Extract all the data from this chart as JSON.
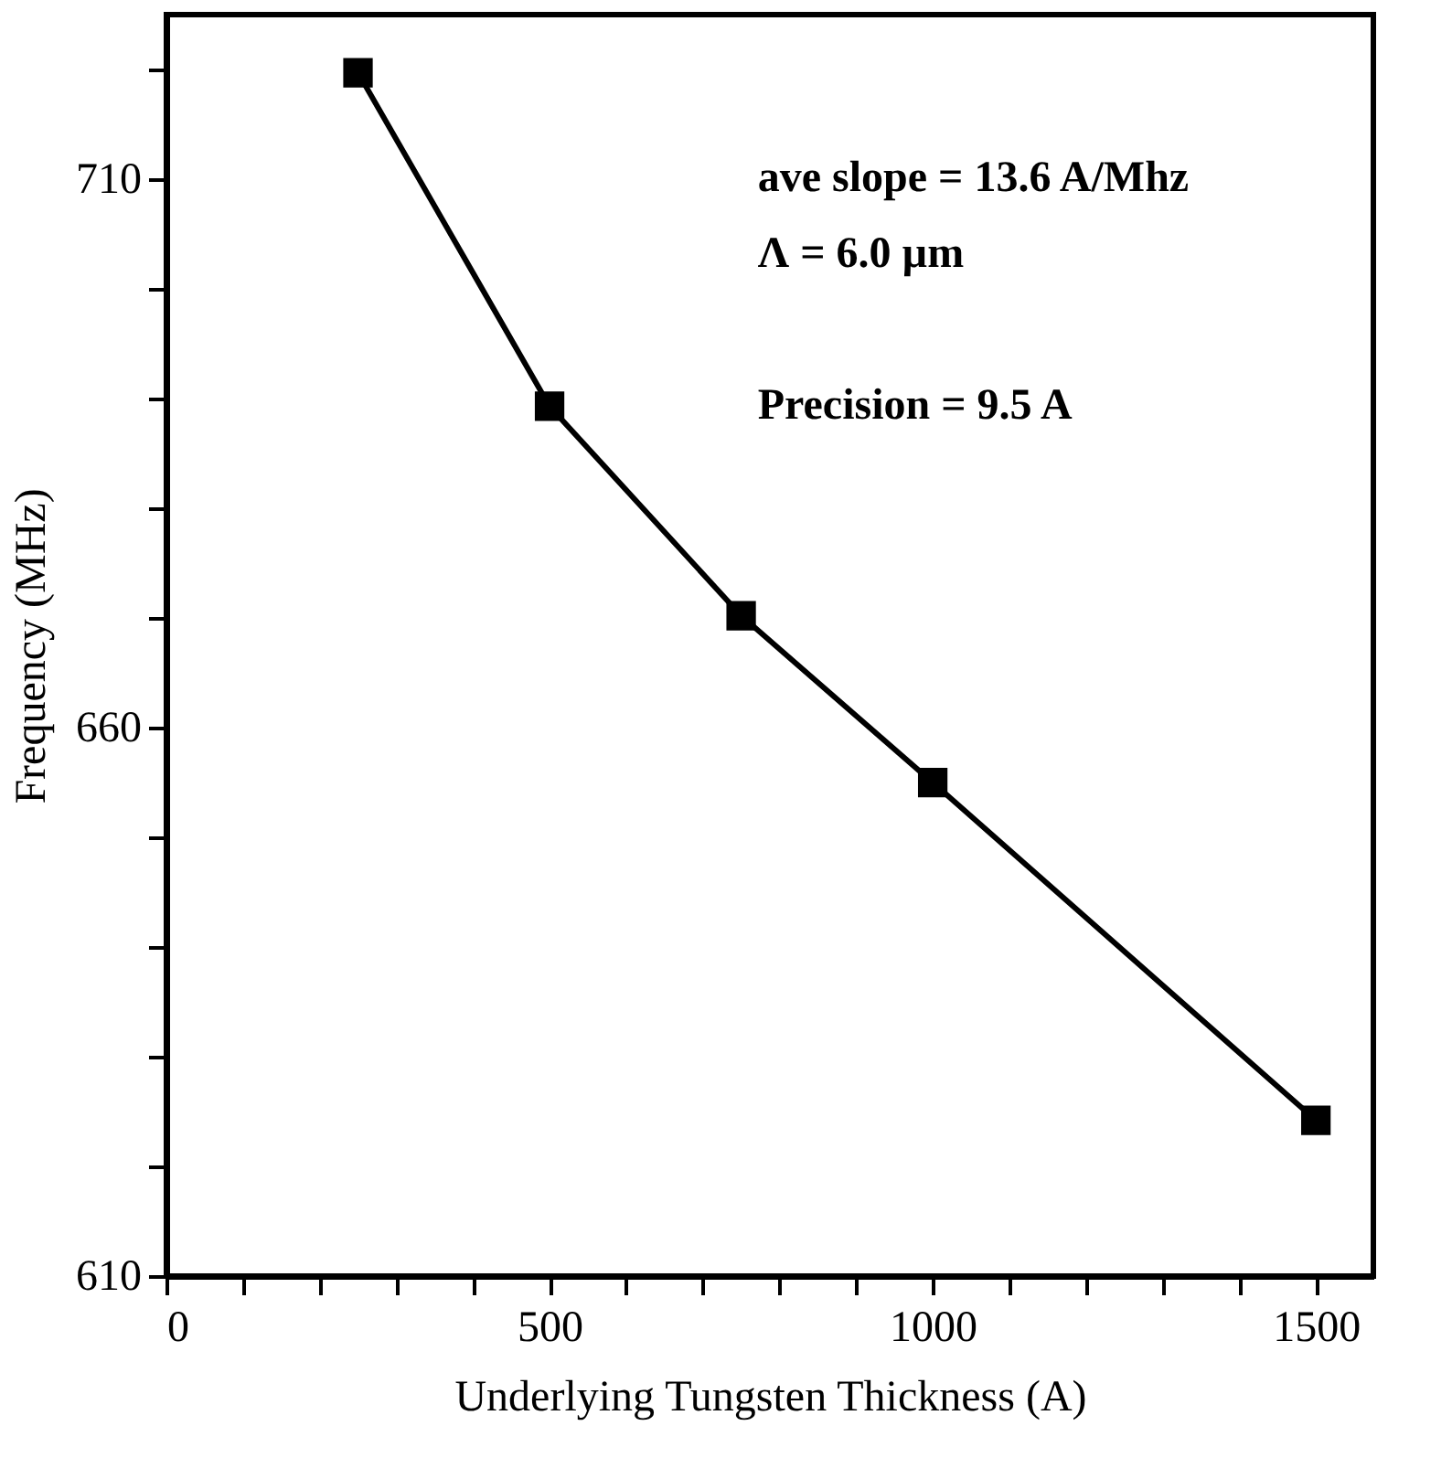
{
  "chart_data": {
    "type": "line",
    "xlabel": "Underlying Tungsten Thickness (A)",
    "ylabel": "Frequency  (MHz)",
    "x": [
      250,
      500,
      750,
      1000,
      1500
    ],
    "series": [
      {
        "color": "#000000",
        "values": [
          719.7,
          689.3,
          670.2,
          655.0,
          624.2
        ]
      }
    ],
    "marker": "square",
    "line_style": "solid",
    "grid": false,
    "xlim": [
      0,
      1575
    ],
    "ylim": [
      610,
      725
    ],
    "xticks": [
      0,
      {
        "value": 100,
        "label": null
      },
      {
        "value": 200,
        "label": null
      },
      {
        "value": 300,
        "label": null
      },
      {
        "value": 400,
        "label": null
      },
      500,
      {
        "value": 600,
        "label": null
      },
      {
        "value": 700,
        "label": null
      },
      {
        "value": 800,
        "label": null
      },
      {
        "value": 900,
        "label": null
      },
      1000,
      {
        "value": 1100,
        "label": null
      },
      {
        "value": 1200,
        "label": null
      },
      {
        "value": 1300,
        "label": null
      },
      {
        "value": 1400,
        "label": null
      },
      1500
    ],
    "yticks": [
      610,
      {
        "value": 620,
        "label": null
      },
      {
        "value": 630,
        "label": null
      },
      {
        "value": 640,
        "label": null
      },
      {
        "value": 650,
        "label": null
      },
      660,
      {
        "value": 670,
        "label": null
      },
      {
        "value": 680,
        "label": null
      },
      {
        "value": 690,
        "label": null
      },
      {
        "value": 700,
        "label": null
      },
      710,
      {
        "value": 720,
        "label": null
      }
    ],
    "annotations": [
      "ave slope = 13.6 A/Mhz",
      "Λ = 6.0 µm",
      "Precision = 9.5  A"
    ]
  }
}
